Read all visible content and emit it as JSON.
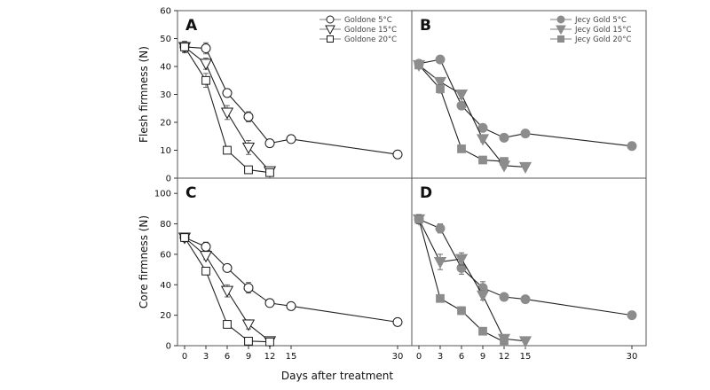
{
  "figure": {
    "xlabel": "Days after treatment",
    "colors": {
      "open": "#ffffff",
      "filled": "#8c8c8c",
      "line": "#1a1a1a"
    }
  },
  "chart_data": [
    {
      "id": "A",
      "type": "line",
      "panel_label": "A",
      "ylabel": "Flesh firmness (N)",
      "xlim": [
        -1,
        32
      ],
      "ylim": [
        0,
        60
      ],
      "xticks": [
        0,
        3,
        6,
        9,
        12,
        15,
        30
      ],
      "yticks": [
        0,
        10,
        20,
        30,
        40,
        50,
        60
      ],
      "fill": "open",
      "series": [
        {
          "name": "Goldone 5°C",
          "marker": "circle",
          "x": [
            0,
            3,
            6,
            9,
            12,
            15,
            30
          ],
          "y": [
            47,
            46.5,
            30.5,
            22,
            12.5,
            14,
            8.5
          ],
          "err": [
            2,
            2,
            1,
            1.8,
            1,
            0.8,
            0.8
          ]
        },
        {
          "name": "Goldone 15°C",
          "marker": "triangle-down",
          "x": [
            0,
            3,
            6,
            9,
            12
          ],
          "y": [
            47,
            41,
            23.5,
            11,
            2.5
          ],
          "err": [
            2,
            2,
            2.5,
            2.5,
            1
          ]
        },
        {
          "name": "Goldone 20°C",
          "marker": "square",
          "x": [
            0,
            3,
            6,
            9,
            12
          ],
          "y": [
            47,
            35,
            10,
            3,
            2
          ],
          "err": [
            2,
            2.5,
            1,
            0.8,
            1
          ]
        }
      ]
    },
    {
      "id": "B",
      "type": "line",
      "panel_label": "B",
      "ylabel": "",
      "xlim": [
        -1,
        32
      ],
      "ylim": [
        0,
        60
      ],
      "xticks": [
        0,
        3,
        6,
        9,
        12,
        15,
        30
      ],
      "yticks": [
        0,
        10,
        20,
        30,
        40,
        50,
        60
      ],
      "fill": "filled",
      "series": [
        {
          "name": "Jecy Gold 5°C",
          "marker": "circle",
          "x": [
            0,
            3,
            6,
            9,
            12,
            15,
            30
          ],
          "y": [
            41,
            42.5,
            26,
            18,
            14.5,
            16,
            11.5
          ],
          "err": [
            0.8,
            0.8,
            1.2,
            1,
            0.8,
            0.8,
            0.8
          ]
        },
        {
          "name": "Jecy Gold 15°C",
          "marker": "triangle-down",
          "x": [
            0,
            3,
            6,
            9,
            12,
            15
          ],
          "y": [
            40.5,
            34.5,
            30,
            14,
            4.5,
            4
          ],
          "err": [
            0.8,
            1.5,
            1.5,
            1,
            0.8,
            0.5
          ]
        },
        {
          "name": "Jecy Gold 20°C",
          "marker": "square",
          "x": [
            0,
            3,
            6,
            9,
            12
          ],
          "y": [
            40.5,
            32,
            10.5,
            6.5,
            6
          ],
          "err": [
            0.8,
            1.5,
            1,
            0.8,
            0.8
          ]
        }
      ]
    },
    {
      "id": "C",
      "type": "line",
      "panel_label": "C",
      "ylabel": "Core firmness (N)",
      "xlim": [
        -1,
        32
      ],
      "ylim": [
        0,
        110
      ],
      "xticks": [
        0,
        3,
        6,
        9,
        12,
        15,
        30
      ],
      "yticks": [
        0,
        20,
        40,
        60,
        80,
        100
      ],
      "fill": "open",
      "series": [
        {
          "name": "Goldone 5°C",
          "marker": "circle",
          "x": [
            0,
            3,
            6,
            9,
            12,
            15,
            30
          ],
          "y": [
            71,
            65,
            51,
            38,
            28,
            26,
            15.5
          ],
          "err": [
            2,
            3,
            2,
            3.5,
            2,
            1.5,
            1.5
          ]
        },
        {
          "name": "Goldone 15°C",
          "marker": "triangle-down",
          "x": [
            0,
            3,
            6,
            9,
            12
          ],
          "y": [
            71,
            59,
            36,
            14,
            3
          ],
          "err": [
            2,
            2.5,
            4,
            3,
            1.5
          ]
        },
        {
          "name": "Goldone 20°C",
          "marker": "square",
          "x": [
            0,
            3,
            6,
            9,
            12
          ],
          "y": [
            71,
            49,
            14,
            3,
            2.5
          ],
          "err": [
            2,
            2,
            1.5,
            1,
            1
          ]
        }
      ]
    },
    {
      "id": "D",
      "type": "line",
      "panel_label": "D",
      "ylabel": "",
      "xlim": [
        -1,
        32
      ],
      "ylim": [
        0,
        110
      ],
      "xticks": [
        0,
        3,
        6,
        9,
        12,
        15,
        30
      ],
      "yticks": [
        0,
        20,
        40,
        60,
        80,
        100
      ],
      "fill": "filled",
      "series": [
        {
          "name": "Jecy Gold 5°C",
          "marker": "circle",
          "x": [
            0,
            3,
            6,
            9,
            12,
            15,
            30
          ],
          "y": [
            83,
            77,
            51,
            38,
            32,
            30.5,
            20
          ],
          "err": [
            3,
            3,
            4,
            4,
            2,
            2,
            1.5
          ]
        },
        {
          "name": "Jecy Gold 15°C",
          "marker": "triangle-down",
          "x": [
            0,
            3,
            6,
            9,
            12,
            15
          ],
          "y": [
            83,
            55,
            57,
            33,
            4.5,
            3
          ],
          "err": [
            3,
            5,
            4,
            3,
            2,
            1
          ]
        },
        {
          "name": "Jecy Gold 20°C",
          "marker": "square",
          "x": [
            0,
            3,
            6,
            9,
            12
          ],
          "y": [
            83,
            31,
            23,
            9.5,
            2.5
          ],
          "err": [
            3,
            2,
            2.5,
            1.5,
            1
          ]
        }
      ]
    }
  ]
}
